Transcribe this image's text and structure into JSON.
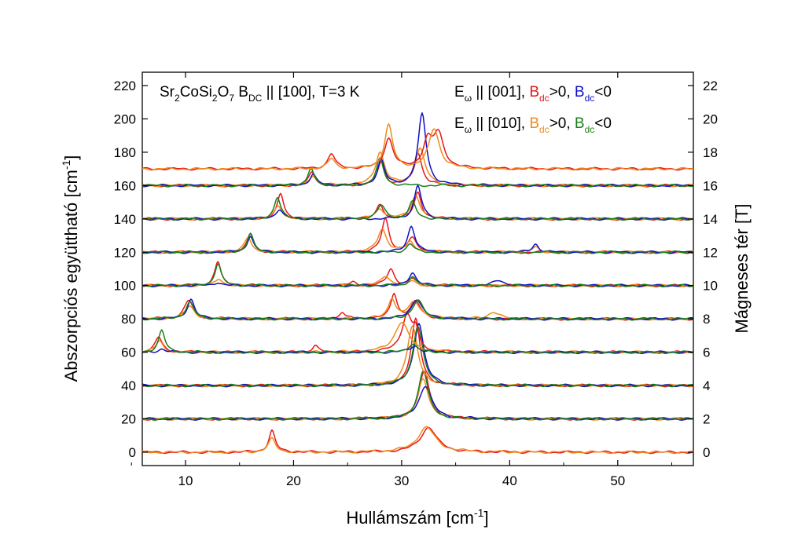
{
  "chart_data": {
    "type": "line",
    "xlabel": "Hullámszám [cm",
    "xlabel_sup": "-1",
    "xlabel_end": "]",
    "ylabel": "Abszorpciós együttható [cm",
    "ylabel_sup": "-1",
    "ylabel_end": "]",
    "y2label": "Mágneses tér [T]",
    "xlim": [
      6,
      57
    ],
    "ylim": [
      -8,
      228
    ],
    "x_ticks": [
      10,
      20,
      30,
      40,
      50
    ],
    "x_tick_labels": [
      "10",
      "20",
      "30",
      "40",
      "50"
    ],
    "y_ticks": [
      0,
      20,
      40,
      60,
      80,
      100,
      120,
      140,
      160,
      180,
      200,
      220
    ],
    "y_tick_labels": [
      "0",
      "20",
      "40",
      "60",
      "80",
      "100",
      "120",
      "140",
      "160",
      "180",
      "200",
      "220"
    ],
    "y2_ticks": [
      0,
      20,
      40,
      60,
      80,
      100,
      120,
      140,
      160,
      180,
      200,
      220
    ],
    "y2_tick_labels": [
      "0",
      "2",
      "4",
      "6",
      "8",
      "10",
      "12",
      "14",
      "16",
      "18",
      "20",
      "22"
    ],
    "annotation_left": {
      "parts": [
        {
          "t": "Sr"
        },
        {
          "t": "2",
          "sub": true
        },
        {
          "t": "CoSi"
        },
        {
          "t": "2",
          "sub": true
        },
        {
          "t": "O"
        },
        {
          "t": "7",
          "sub": true
        },
        {
          "t": " B"
        },
        {
          "t": "DC",
          "sub": true
        },
        {
          "t": " || [100],  T=3 K"
        }
      ]
    },
    "legend_line1": {
      "parts": [
        {
          "t": "E",
          "color": "#000000"
        },
        {
          "t": "ω",
          "sub": true,
          "color": "#000000"
        },
        {
          "t": " || [001], ",
          "color": "#000000"
        },
        {
          "t": "B",
          "color": "#e8161b"
        },
        {
          "t": "dc",
          "sub": true,
          "color": "#e8161b"
        },
        {
          "t": ">0, ",
          "color": "#000000"
        },
        {
          "t": "B",
          "color": "#1010c8"
        },
        {
          "t": "dc",
          "sub": true,
          "color": "#1010c8"
        },
        {
          "t": "<0",
          "color": "#000000"
        }
      ]
    },
    "legend_line2": {
      "parts": [
        {
          "t": "E",
          "color": "#000000"
        },
        {
          "t": "ω",
          "sub": true,
          "color": "#000000"
        },
        {
          "t": " || [010], ",
          "color": "#000000"
        },
        {
          "t": "B",
          "color": "#f08a1c"
        },
        {
          "t": "dc",
          "sub": true,
          "color": "#f08a1c"
        },
        {
          "t": ">0, ",
          "color": "#000000"
        },
        {
          "t": "B",
          "color": "#1a7f1a"
        },
        {
          "t": "dc",
          "sub": true,
          "color": "#1a7f1a"
        },
        {
          "t": "<0",
          "color": "#000000"
        }
      ]
    },
    "series": [
      {
        "color": "#e8161b",
        "offset": 0,
        "peaks": [
          [
            18.0,
            13,
            0.35
          ],
          [
            32.5,
            15,
            0.9
          ]
        ]
      },
      {
        "color": "#f08a1c",
        "offset": 0,
        "peaks": [
          [
            18.0,
            8,
            0.4
          ],
          [
            32.3,
            15,
            1.0
          ]
        ]
      },
      {
        "color": "#e8161b",
        "offset": 20,
        "peaks": [
          [
            32.1,
            28,
            0.6
          ]
        ]
      },
      {
        "color": "#f08a1c",
        "offset": 20,
        "peaks": [
          [
            32.0,
            24,
            0.6
          ]
        ]
      },
      {
        "color": "#1010c8",
        "offset": 20,
        "peaks": [
          [
            32.2,
            20,
            0.7
          ]
        ]
      },
      {
        "color": "#1a7f1a",
        "offset": 20,
        "peaks": [
          [
            32.0,
            29,
            0.55
          ]
        ]
      },
      {
        "color": "#e8161b",
        "offset": 40,
        "peaks": [
          [
            31.3,
            40,
            0.5
          ]
        ]
      },
      {
        "color": "#f08a1c",
        "offset": 40,
        "peaks": [
          [
            31.0,
            35,
            0.6
          ]
        ]
      },
      {
        "color": "#1010c8",
        "offset": 40,
        "peaks": [
          [
            31.6,
            38,
            0.55
          ]
        ]
      },
      {
        "color": "#1a7f1a",
        "offset": 40,
        "peaks": [
          [
            31.5,
            36,
            0.55
          ]
        ]
      },
      {
        "color": "#e8161b",
        "offset": 60,
        "peaks": [
          [
            7.5,
            9,
            0.4
          ],
          [
            22.0,
            4,
            0.3
          ],
          [
            30.5,
            22,
            0.6
          ],
          [
            31.3,
            10,
            0.3
          ]
        ]
      },
      {
        "color": "#f08a1c",
        "offset": 60,
        "peaks": [
          [
            7.6,
            7,
            0.4
          ],
          [
            30.0,
            18,
            0.8
          ]
        ]
      },
      {
        "color": "#1010c8",
        "offset": 60,
        "peaks": [
          [
            7.8,
            2,
            0.4
          ],
          [
            31.2,
            4,
            0.5
          ]
        ]
      },
      {
        "color": "#1a7f1a",
        "offset": 60,
        "peaks": [
          [
            7.8,
            13,
            0.35
          ],
          [
            31.0,
            5,
            0.5
          ]
        ]
      },
      {
        "color": "#e8161b",
        "offset": 80,
        "peaks": [
          [
            10.3,
            11,
            0.5
          ],
          [
            24.5,
            4,
            0.3
          ],
          [
            29.3,
            15,
            0.35
          ],
          [
            31.3,
            10,
            0.6
          ]
        ]
      },
      {
        "color": "#f08a1c",
        "offset": 80,
        "peaks": [
          [
            10.4,
            8,
            0.5
          ],
          [
            29.1,
            12,
            0.4
          ],
          [
            31.2,
            10,
            0.7
          ],
          [
            38.5,
            4,
            0.6
          ]
        ]
      },
      {
        "color": "#1010c8",
        "offset": 80,
        "peaks": [
          [
            10.5,
            12,
            0.4
          ],
          [
            31.4,
            12,
            0.6
          ]
        ]
      },
      {
        "color": "#1a7f1a",
        "offset": 80,
        "peaks": [
          [
            10.4,
            10,
            0.45
          ],
          [
            31.5,
            11,
            0.6
          ]
        ]
      },
      {
        "color": "#e8161b",
        "offset": 100,
        "peaks": [
          [
            13.0,
            14,
            0.35
          ],
          [
            25.5,
            2,
            0.3
          ],
          [
            29.0,
            10,
            0.4
          ],
          [
            31.0,
            4,
            0.4
          ]
        ]
      },
      {
        "color": "#f08a1c",
        "offset": 100,
        "peaks": [
          [
            13.1,
            4,
            0.4
          ],
          [
            28.5,
            6,
            0.5
          ],
          [
            31.0,
            3,
            0.4
          ]
        ]
      },
      {
        "color": "#1010c8",
        "offset": 100,
        "peaks": [
          [
            13.0,
            2,
            0.4
          ],
          [
            31.0,
            8,
            0.4
          ],
          [
            39.0,
            3,
            0.6
          ]
        ]
      },
      {
        "color": "#1a7f1a",
        "offset": 100,
        "peaks": [
          [
            13.0,
            13,
            0.35
          ],
          [
            31.0,
            5,
            0.4
          ]
        ]
      },
      {
        "color": "#e8161b",
        "offset": 120,
        "peaks": [
          [
            16.0,
            11,
            0.35
          ],
          [
            28.5,
            20,
            0.4
          ],
          [
            31.0,
            8,
            0.5
          ]
        ]
      },
      {
        "color": "#f08a1c",
        "offset": 120,
        "peaks": [
          [
            15.8,
            9,
            0.4
          ],
          [
            28.2,
            14,
            0.5
          ],
          [
            30.8,
            6,
            0.5
          ],
          [
            42.4,
            3,
            0.4
          ]
        ]
      },
      {
        "color": "#1010c8",
        "offset": 120,
        "peaks": [
          [
            16.0,
            10,
            0.35
          ],
          [
            30.9,
            16,
            0.4
          ],
          [
            42.4,
            5,
            0.35
          ]
        ]
      },
      {
        "color": "#1a7f1a",
        "offset": 120,
        "peaks": [
          [
            16.0,
            11,
            0.35
          ],
          [
            30.8,
            5,
            0.4
          ]
        ]
      },
      {
        "color": "#e8161b",
        "offset": 140,
        "peaks": [
          [
            18.8,
            15,
            0.35
          ],
          [
            28.0,
            8,
            0.4
          ],
          [
            31.5,
            16,
            0.4
          ]
        ]
      },
      {
        "color": "#f08a1c",
        "offset": 140,
        "peaks": [
          [
            18.6,
            8,
            0.4
          ],
          [
            28.0,
            6,
            0.5
          ],
          [
            31.3,
            14,
            0.5
          ]
        ]
      },
      {
        "color": "#1010c8",
        "offset": 140,
        "peaks": [
          [
            18.7,
            6,
            0.4
          ],
          [
            31.5,
            20,
            0.4
          ]
        ]
      },
      {
        "color": "#1a7f1a",
        "offset": 140,
        "peaks": [
          [
            18.5,
            13,
            0.35
          ],
          [
            28.1,
            8,
            0.45
          ],
          [
            31.0,
            10,
            0.4
          ]
        ]
      },
      {
        "color": "#e8161b",
        "offset": 160,
        "peaks": [
          [
            21.7,
            8,
            0.35
          ],
          [
            28.1,
            14,
            0.4
          ],
          [
            31.5,
            20,
            0.45
          ]
        ]
      },
      {
        "color": "#f08a1c",
        "offset": 160,
        "peaks": [
          [
            21.8,
            6,
            0.4
          ],
          [
            28.0,
            20,
            0.5
          ],
          [
            31.7,
            22,
            0.55
          ]
        ]
      },
      {
        "color": "#1010c8",
        "offset": 160,
        "peaks": [
          [
            21.8,
            7,
            0.35
          ],
          [
            28.1,
            15,
            0.4
          ],
          [
            31.9,
            43,
            0.45
          ]
        ]
      },
      {
        "color": "#1a7f1a",
        "offset": 160,
        "peaks": [
          [
            21.6,
            10,
            0.35
          ],
          [
            28.0,
            16,
            0.4
          ]
        ]
      },
      {
        "color": "#e8161b",
        "offset": 170,
        "peaks": [
          [
            23.5,
            9,
            0.4
          ],
          [
            28.8,
            18,
            0.5
          ],
          [
            32.4,
            15,
            0.5
          ],
          [
            33.4,
            20,
            0.6
          ]
        ]
      },
      {
        "color": "#f08a1c",
        "offset": 170,
        "peaks": [
          [
            23.5,
            6,
            0.4
          ],
          [
            28.8,
            26,
            0.45
          ],
          [
            33.0,
            24,
            0.6
          ]
        ]
      }
    ]
  }
}
